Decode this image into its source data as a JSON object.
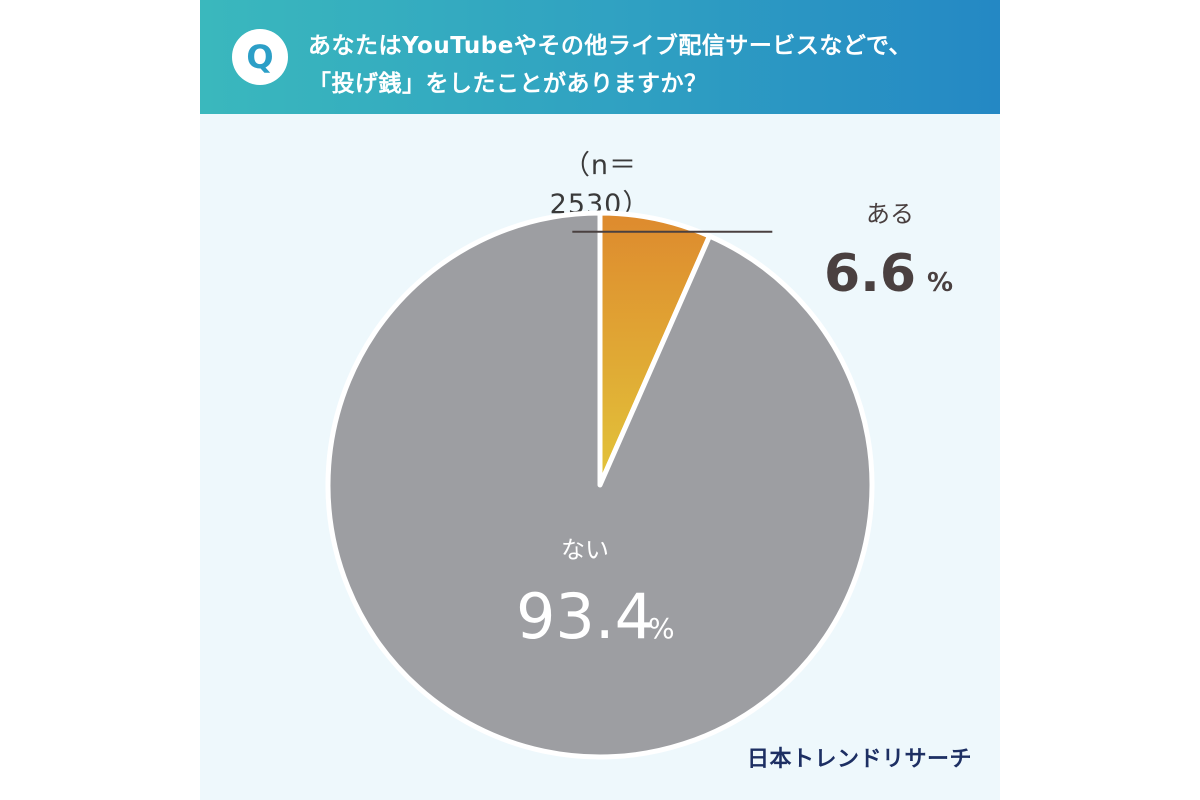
{
  "question": {
    "badge": "Q",
    "line1": "あなたはYouTubeやその他ライブ配信サービスなどで、",
    "line2": "「投げ銭」をしたことがありますか？"
  },
  "chart_data": {
    "type": "pie",
    "title": "",
    "sample_label": "（n＝2530）",
    "unit": "%",
    "slices": [
      {
        "label": "ある",
        "value": 6.6,
        "value_text": "6.6",
        "color": "#de8a2e",
        "gradient_end": "#e2c43a",
        "label_color": "#4a4040"
      },
      {
        "label": "ない",
        "value": 93.4,
        "value_text": "93.4",
        "color": "#9d9ea2",
        "label_color": "#ffffff"
      }
    ]
  },
  "brand": "日本トレンドリサーチ"
}
